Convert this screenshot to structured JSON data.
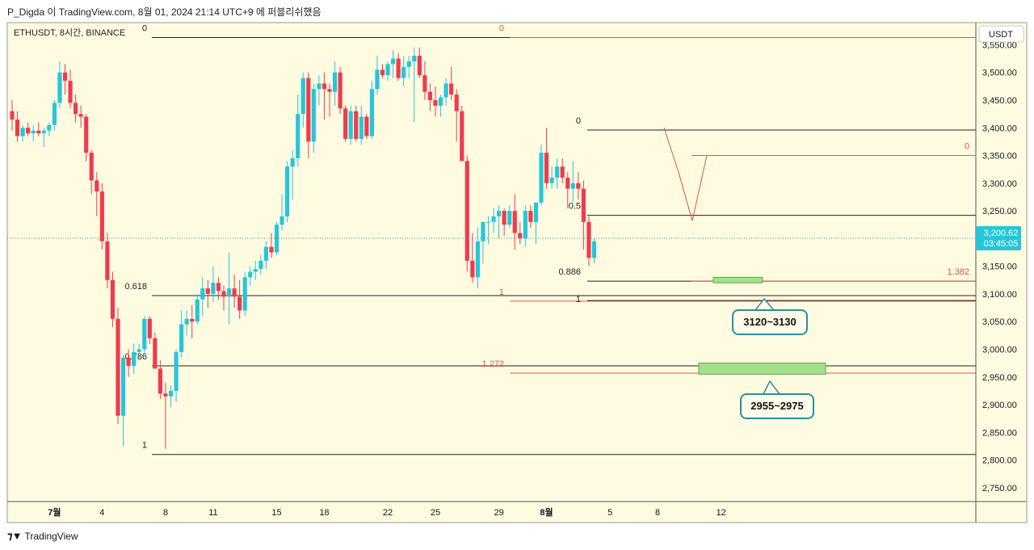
{
  "header": {
    "text": "P_Digda 이 TradingView.com, 8월 01, 2024 21:14 UTC+9 에 퍼블리쉬했음"
  },
  "symbol": {
    "label": "ETHUSDT, 8시간, BINANCE"
  },
  "currency_button": {
    "label": "USDT"
  },
  "price_tag": {
    "price": "3,200.62",
    "countdown": "03:45:05"
  },
  "footer": {
    "brand": "TradingView",
    "logo": "tradingview-logo"
  },
  "callouts": [
    {
      "label": "3120~3130"
    },
    {
      "label": "2955~2975"
    }
  ],
  "colors": {
    "background": "#fffbe1",
    "up": "#26c6da",
    "down": "#ef3b4e",
    "fib_red": "#e05252",
    "fib_black": "#222222",
    "zone_fill": "#a4e08a",
    "callout_border": "#2a8ea3"
  },
  "chart_data": {
    "type": "candlestick",
    "title": "ETHUSDT, 8시간, BINANCE",
    "ylim": [
      2725,
      3590
    ],
    "y_ticks": [
      2750,
      2800,
      2850,
      2900,
      2950,
      3000,
      3050,
      3100,
      3150,
      3200,
      3250,
      3300,
      3350,
      3400,
      3450,
      3500,
      3550
    ],
    "y_tick_labels": [
      "2,750.00",
      "2,800.00",
      "2,850.00",
      "2,900.00",
      "2,950.00",
      "3,000.00",
      "3,050.00",
      "3,100.00",
      "3,150.00",
      "3,200.00",
      "3,250.00",
      "3,300.00",
      "3,350.00",
      "3,400.00",
      "3,450.00",
      "3,500.00",
      "3,550.00"
    ],
    "x_ticks": [
      {
        "label": "7월",
        "bar": 8,
        "bold": true
      },
      {
        "label": "4",
        "bar": 17
      },
      {
        "label": "8",
        "bar": 29
      },
      {
        "label": "11",
        "bar": 38
      },
      {
        "label": "15",
        "bar": 50
      },
      {
        "label": "18",
        "bar": 59
      },
      {
        "label": "22",
        "bar": 71
      },
      {
        "label": "25",
        "bar": 80
      },
      {
        "label": "29",
        "bar": 92
      },
      {
        "label": "8월",
        "bar": 101,
        "bold": true
      },
      {
        "label": "5",
        "bar": 113
      },
      {
        "label": "8",
        "bar": 122
      },
      {
        "label": "12",
        "bar": 134
      }
    ],
    "current_price": 3200.62,
    "candles": [
      [
        3430,
        3450,
        3395,
        3415
      ],
      [
        3415,
        3430,
        3375,
        3385
      ],
      [
        3385,
        3405,
        3375,
        3400
      ],
      [
        3400,
        3410,
        3385,
        3390
      ],
      [
        3390,
        3405,
        3375,
        3395
      ],
      [
        3395,
        3410,
        3385,
        3390
      ],
      [
        3390,
        3400,
        3365,
        3395
      ],
      [
        3395,
        3410,
        3385,
        3405
      ],
      [
        3405,
        3450,
        3395,
        3445
      ],
      [
        3445,
        3520,
        3435,
        3500
      ],
      [
        3500,
        3515,
        3460,
        3485
      ],
      [
        3485,
        3505,
        3435,
        3445
      ],
      [
        3445,
        3460,
        3410,
        3425
      ],
      [
        3425,
        3440,
        3400,
        3420
      ],
      [
        3420,
        3425,
        3340,
        3355
      ],
      [
        3355,
        3360,
        3280,
        3305
      ],
      [
        3305,
        3320,
        3240,
        3285
      ],
      [
        3285,
        3300,
        3180,
        3195
      ],
      [
        3195,
        3210,
        3110,
        3125
      ],
      [
        3125,
        3140,
        3040,
        3055
      ],
      [
        3055,
        3075,
        2865,
        2880
      ],
      [
        2880,
        2990,
        2825,
        2985
      ],
      [
        2985,
        3000,
        2950,
        2970
      ],
      [
        2970,
        3010,
        2955,
        2995
      ],
      [
        2995,
        3010,
        2980,
        3000
      ],
      [
        3000,
        3060,
        2990,
        3055
      ],
      [
        3055,
        3060,
        3010,
        3020
      ],
      [
        3020,
        3030,
        2970,
        2965
      ],
      [
        2965,
        2980,
        2910,
        2920
      ],
      [
        2920,
        2940,
        2820,
        2915
      ],
      [
        2915,
        2935,
        2895,
        2925
      ],
      [
        2925,
        3000,
        2905,
        2995
      ],
      [
        2995,
        3070,
        2985,
        3045
      ],
      [
        3045,
        3070,
        3025,
        3055
      ],
      [
        3055,
        3080,
        3020,
        3050
      ],
      [
        3050,
        3100,
        3045,
        3090
      ],
      [
        3090,
        3130,
        3060,
        3110
      ],
      [
        3110,
        3125,
        3075,
        3100
      ],
      [
        3100,
        3150,
        3085,
        3120
      ],
      [
        3120,
        3130,
        3090,
        3105
      ],
      [
        3105,
        3115,
        3070,
        3095
      ],
      [
        3095,
        3175,
        3045,
        3110
      ],
      [
        3110,
        3135,
        3075,
        3095
      ],
      [
        3095,
        3125,
        3055,
        3070
      ],
      [
        3070,
        3140,
        3060,
        3130
      ],
      [
        3130,
        3150,
        3115,
        3140
      ],
      [
        3140,
        3160,
        3125,
        3145
      ],
      [
        3145,
        3170,
        3135,
        3160
      ],
      [
        3160,
        3195,
        3145,
        3185
      ],
      [
        3185,
        3210,
        3165,
        3175
      ],
      [
        3175,
        3230,
        3170,
        3225
      ],
      [
        3225,
        3280,
        3215,
        3240
      ],
      [
        3240,
        3340,
        3230,
        3330
      ],
      [
        3330,
        3360,
        3270,
        3345
      ],
      [
        3345,
        3460,
        3330,
        3425
      ],
      [
        3425,
        3500,
        3400,
        3490
      ],
      [
        3490,
        3500,
        3345,
        3375
      ],
      [
        3375,
        3480,
        3355,
        3470
      ],
      [
        3470,
        3495,
        3440,
        3480
      ],
      [
        3480,
        3500,
        3415,
        3470
      ],
      [
        3470,
        3480,
        3420,
        3465
      ],
      [
        3465,
        3520,
        3440,
        3500
      ],
      [
        3500,
        3510,
        3425,
        3435
      ],
      [
        3435,
        3440,
        3375,
        3380
      ],
      [
        3380,
        3440,
        3370,
        3430
      ],
      [
        3430,
        3440,
        3375,
        3380
      ],
      [
        3380,
        3440,
        3370,
        3420
      ],
      [
        3420,
        3425,
        3380,
        3385
      ],
      [
        3385,
        3485,
        3380,
        3470
      ],
      [
        3470,
        3530,
        3460,
        3505
      ],
      [
        3505,
        3515,
        3490,
        3495
      ],
      [
        3495,
        3520,
        3485,
        3515
      ],
      [
        3515,
        3540,
        3490,
        3525
      ],
      [
        3525,
        3535,
        3485,
        3490
      ],
      [
        3490,
        3530,
        3475,
        3510
      ],
      [
        3510,
        3530,
        3490,
        3520
      ],
      [
        3520,
        3545,
        3410,
        3530
      ],
      [
        3530,
        3545,
        3490,
        3495
      ],
      [
        3495,
        3520,
        3450,
        3465
      ],
      [
        3465,
        3480,
        3430,
        3450
      ],
      [
        3450,
        3475,
        3420,
        3440
      ],
      [
        3440,
        3460,
        3420,
        3455
      ],
      [
        3455,
        3490,
        3440,
        3480
      ],
      [
        3480,
        3510,
        3450,
        3460
      ],
      [
        3460,
        3470,
        3375,
        3430
      ],
      [
        3430,
        3440,
        3340,
        3340
      ],
      [
        3340,
        3350,
        3140,
        3160
      ],
      [
        3160,
        3210,
        3120,
        3130
      ],
      [
        3130,
        3220,
        3110,
        3195
      ],
      [
        3195,
        3230,
        3155,
        3230
      ],
      [
        3230,
        3240,
        3190,
        3230
      ],
      [
        3230,
        3255,
        3210,
        3240
      ],
      [
        3240,
        3260,
        3200,
        3250
      ],
      [
        3250,
        3255,
        3205,
        3225
      ],
      [
        3225,
        3260,
        3220,
        3250
      ],
      [
        3250,
        3280,
        3180,
        3210
      ],
      [
        3210,
        3230,
        3190,
        3200
      ],
      [
        3200,
        3260,
        3185,
        3250
      ],
      [
        3250,
        3260,
        3220,
        3230
      ],
      [
        3230,
        3265,
        3190,
        3265
      ],
      [
        3265,
        3370,
        3260,
        3355
      ],
      [
        3355,
        3400,
        3290,
        3300
      ],
      [
        3300,
        3330,
        3290,
        3310
      ],
      [
        3310,
        3345,
        3290,
        3330
      ],
      [
        3330,
        3345,
        3300,
        3310
      ],
      [
        3310,
        3320,
        3255,
        3290
      ],
      [
        3290,
        3340,
        3265,
        3300
      ],
      [
        3300,
        3320,
        3270,
        3290
      ],
      [
        3290,
        3305,
        3180,
        3230
      ],
      [
        3230,
        3240,
        3150,
        3165
      ],
      [
        3165,
        3200,
        3155,
        3195
      ]
    ],
    "fib_levels": [
      {
        "label": "0",
        "price": 3563,
        "color": "black"
      },
      {
        "label": "0.618",
        "price": 3097,
        "color": "black"
      },
      {
        "label": "0.786",
        "price": 2970,
        "color": "black"
      },
      {
        "label": "1",
        "price": 2810,
        "color": "black"
      },
      {
        "label": "0",
        "price": 3563,
        "color": "red"
      },
      {
        "label": "1",
        "price": 3087,
        "color": "red"
      },
      {
        "label": "1.272",
        "price": 2957,
        "color": "red"
      },
      {
        "label": "0",
        "price": 3396,
        "color": "black"
      },
      {
        "label": "0.5",
        "price": 3242,
        "color": "black"
      },
      {
        "label": "0.886",
        "price": 3123,
        "color": "black"
      },
      {
        "label": "1",
        "price": 3088,
        "color": "black"
      },
      {
        "label": "0",
        "price": 3350,
        "color": "red"
      },
      {
        "label": "1.382",
        "price": 3123,
        "color": "red"
      }
    ],
    "zones": [
      {
        "label": "3120~3130",
        "low": 3120,
        "high": 3130
      },
      {
        "label": "2955~2975",
        "low": 2955,
        "high": 2975
      }
    ],
    "pattern_path": [
      [
        3400,
        3400
      ],
      [
        3320,
        3320
      ],
      [
        3232,
        3232
      ],
      [
        3350,
        3350
      ]
    ]
  }
}
